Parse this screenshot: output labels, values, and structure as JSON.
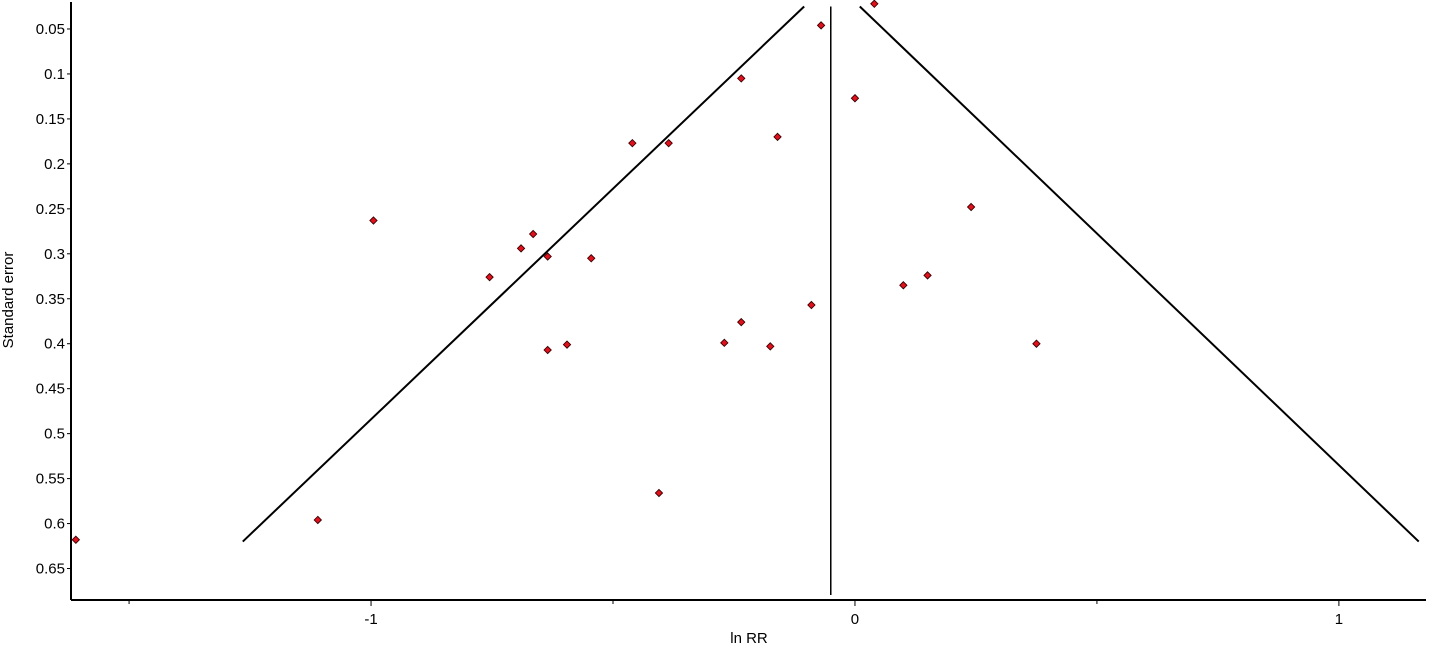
{
  "chart_data": {
    "type": "scatter",
    "title": "",
    "xlabel": "ln RR",
    "ylabel": "Standard error",
    "xlim": [
      -1.62,
      1.18
    ],
    "ylim": [
      0.02,
      0.685
    ],
    "y_inverted": true,
    "grid": false,
    "x_ticks": [
      {
        "value": -1,
        "label": "-1"
      },
      {
        "value": 0,
        "label": "0"
      },
      {
        "value": 1,
        "label": "1"
      }
    ],
    "x_minor_ticks": [
      -1.5,
      -0.5,
      0.5
    ],
    "y_ticks": [
      {
        "value": 0.05,
        "label": "0.05"
      },
      {
        "value": 0.1,
        "label": "0.1"
      },
      {
        "value": 0.15,
        "label": "0.15"
      },
      {
        "value": 0.2,
        "label": "0.2"
      },
      {
        "value": 0.25,
        "label": "0.25"
      },
      {
        "value": 0.3,
        "label": "0.3"
      },
      {
        "value": 0.35,
        "label": "0.35"
      },
      {
        "value": 0.4,
        "label": "0.4"
      },
      {
        "value": 0.45,
        "label": "0.45"
      },
      {
        "value": 0.5,
        "label": "0.5"
      },
      {
        "value": 0.55,
        "label": "0.55"
      },
      {
        "value": 0.6,
        "label": "0.6"
      },
      {
        "value": 0.65,
        "label": "0.65"
      }
    ],
    "reference_line_x": -0.05,
    "funnel": {
      "left": [
        [
          -1.265,
          0.62
        ],
        [
          -0.105,
          0.025
        ]
      ],
      "right": [
        [
          0.01,
          0.025
        ],
        [
          1.165,
          0.62
        ]
      ]
    },
    "points": [
      {
        "x": 0.04,
        "y": 0.022
      },
      {
        "x": -0.07,
        "y": 0.046
      },
      {
        "x": -0.235,
        "y": 0.105
      },
      {
        "x": 0.0,
        "y": 0.127
      },
      {
        "x": -0.16,
        "y": 0.17
      },
      {
        "x": -0.46,
        "y": 0.177
      },
      {
        "x": -0.385,
        "y": 0.177
      },
      {
        "x": 0.24,
        "y": 0.248
      },
      {
        "x": -0.995,
        "y": 0.263
      },
      {
        "x": -0.665,
        "y": 0.278
      },
      {
        "x": -0.69,
        "y": 0.294
      },
      {
        "x": -0.635,
        "y": 0.303
      },
      {
        "x": -0.545,
        "y": 0.305
      },
      {
        "x": 0.15,
        "y": 0.324
      },
      {
        "x": -0.755,
        "y": 0.326
      },
      {
        "x": 0.1,
        "y": 0.335
      },
      {
        "x": -0.09,
        "y": 0.357
      },
      {
        "x": -0.235,
        "y": 0.376
      },
      {
        "x": -0.27,
        "y": 0.399
      },
      {
        "x": 0.375,
        "y": 0.4
      },
      {
        "x": -0.595,
        "y": 0.401
      },
      {
        "x": -0.175,
        "y": 0.403
      },
      {
        "x": -0.635,
        "y": 0.407
      },
      {
        "x": -0.405,
        "y": 0.566
      },
      {
        "x": -1.11,
        "y": 0.596
      },
      {
        "x": -1.61,
        "y": 0.618
      }
    ],
    "colors": {
      "point": "#e0101c",
      "point_stroke": "#3a0000",
      "line": "#000000",
      "axis": "#000000"
    }
  }
}
